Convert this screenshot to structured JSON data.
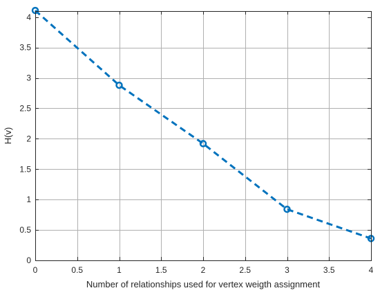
{
  "chart_data": {
    "type": "line",
    "title": "",
    "xlabel": "Number of relationships used for vertex weigth assignment",
    "ylabel": "H(v)",
    "xlim": [
      0,
      4
    ],
    "ylim": [
      0,
      4.1
    ],
    "xticks": [
      0,
      0.5,
      1,
      1.5,
      2,
      2.5,
      3,
      3.5,
      4
    ],
    "xtick_labels": [
      "0",
      "0.5",
      "1",
      "1.5",
      "2",
      "2.5",
      "3",
      "3.5",
      "4"
    ],
    "yticks": [
      0,
      0.5,
      1,
      1.5,
      2,
      2.5,
      3,
      3.5,
      4
    ],
    "ytick_labels": [
      "0",
      "0.5",
      "1",
      "1.5",
      "2",
      "2.5",
      "3",
      "3.5",
      "4"
    ],
    "grid": true,
    "box": true,
    "series": [
      {
        "x": [
          0,
          1,
          2,
          3,
          4
        ],
        "y": [
          4.11,
          2.88,
          1.92,
          0.84,
          0.36
        ],
        "line_style": "dashed",
        "marker": "circle",
        "color": "#0072BD"
      }
    ],
    "colors": {
      "series": "#0072BD",
      "axis": "#262626",
      "grid": "#b0b0b0"
    }
  }
}
